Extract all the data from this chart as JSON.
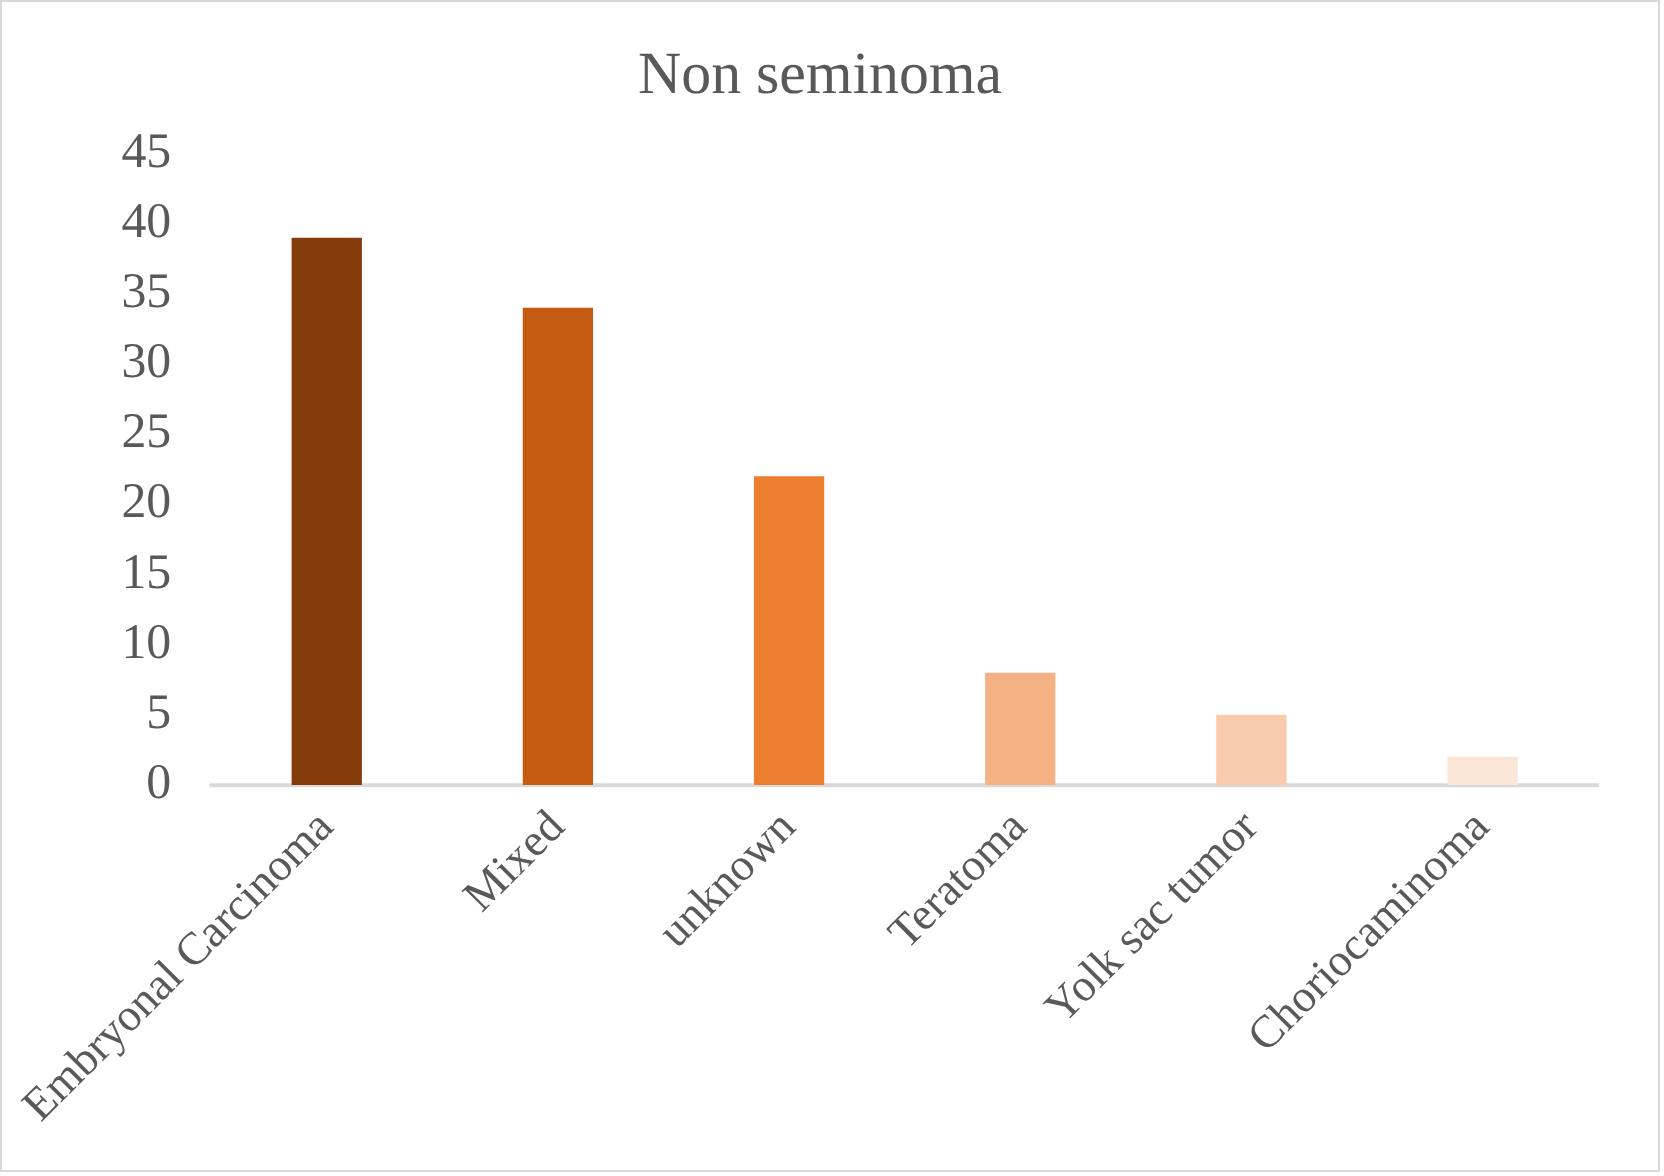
{
  "chart_data": {
    "type": "bar",
    "title": "Non seminoma",
    "categories": [
      "Embryonal Carcinoma",
      "Mixed",
      "unknown",
      "Teratoma",
      "Yolk sac tumor",
      "Choriocaminoma"
    ],
    "values": [
      39,
      34,
      22,
      8,
      5,
      2
    ],
    "colors": [
      "#843c0c",
      "#c55a11",
      "#ed7d31",
      "#f4b183",
      "#f8cbad",
      "#fbe5d6"
    ],
    "ylim": [
      0,
      45
    ],
    "yticks": [
      0,
      5,
      10,
      15,
      20,
      25,
      30,
      35,
      40,
      45
    ],
    "grid": false,
    "legend": false
  }
}
